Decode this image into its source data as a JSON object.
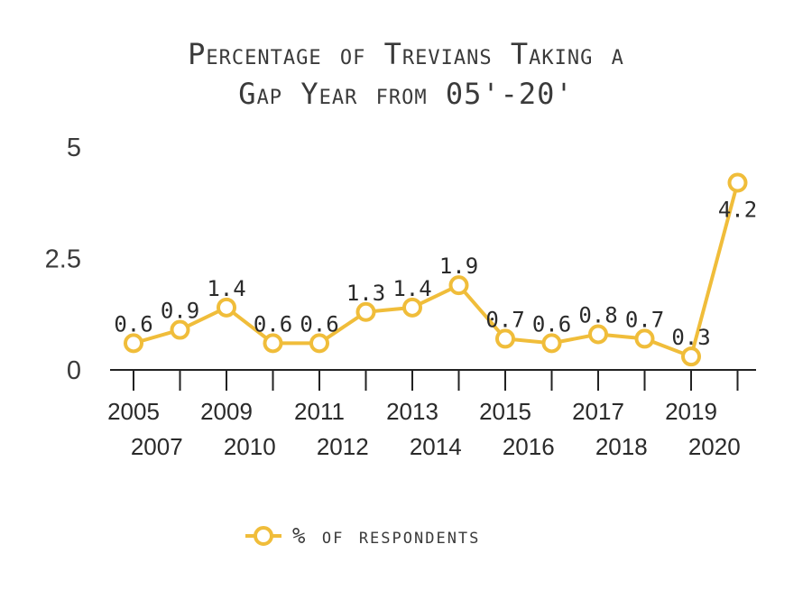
{
  "title_line1": "Percentage of Trevians Taking a",
  "title_line2": "Gap Year from 05'-20'",
  "legend_label": "% of respondents",
  "colors": {
    "line": "#f0bd3a",
    "marker_fill": "#ffffff",
    "axis": "#222222",
    "text": "#3a3a3a"
  },
  "chart_data": {
    "type": "line",
    "title": "Percentage of Trevians Taking a Gap Year from 05'-20'",
    "categories": [
      "2005",
      "2007",
      "2009",
      "2010",
      "2011",
      "2012",
      "2013",
      "2014",
      "2015",
      "2016",
      "2017",
      "2018",
      "2019",
      "2020"
    ],
    "series": [
      {
        "name": "% of respondents",
        "values": [
          0.6,
          0.9,
          1.4,
          0.6,
          0.6,
          1.3,
          1.4,
          1.9,
          0.7,
          0.6,
          0.8,
          0.7,
          0.3,
          4.2
        ]
      }
    ],
    "data_labels": [
      "0.6",
      "0.9",
      "1.4",
      "0.6",
      "0.6",
      "1.3",
      "1.4",
      "1.9",
      "0.7",
      "0.6",
      "0.8",
      "0.7",
      "0.3",
      "4.2"
    ],
    "ylim": [
      0,
      5
    ],
    "yticks": [
      "0",
      "2.5",
      "5"
    ],
    "grid": false,
    "legend": "bottom"
  }
}
